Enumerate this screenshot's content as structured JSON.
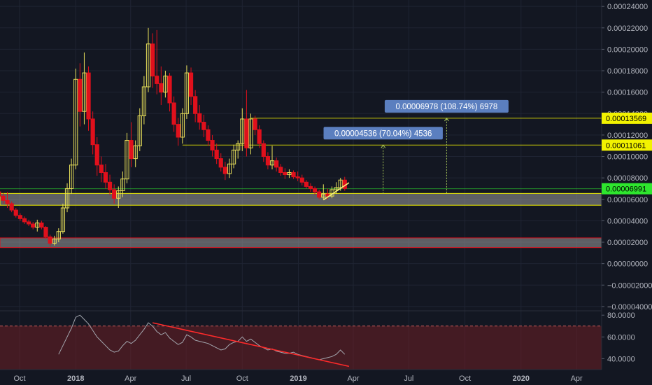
{
  "theme": {
    "background": "#131722",
    "grid": "#1f2433",
    "axis_text": "#b2b5be",
    "candle_up": "#e8e05a",
    "candle_down": "#e0101c",
    "horizontal_line_yellow": "#f2f200",
    "current_price_green": "#2ee62e",
    "zone_fill": "#9a9a9a",
    "measure_label_bg": "#5b7fbf",
    "rsi_line": "#a3a6ae",
    "rsi_band": "#6e1f24",
    "rsi_trendline": "#ff2a2a"
  },
  "chart_data": [
    {
      "type": "candlestick",
      "ylim": [
        -4.4e-05,
        0.000246
      ],
      "price_axis_ticks": [
        "0.00024000",
        "0.00022000",
        "0.00020000",
        "0.00018000",
        "0.00016000",
        "0.00014000",
        "0.00012000",
        "0.00010000",
        "0.00008000",
        "0.00006000",
        "0.00004000",
        "0.00002000",
        "0.00000000",
        "−0.00002000",
        "−0.00004000"
      ],
      "price_axis_tick_values": [
        0.00024,
        0.00022,
        0.0002,
        0.00018,
        0.00016,
        0.00014,
        0.00012,
        0.0001,
        8e-05,
        6e-05,
        4e-05,
        2e-05,
        0,
        -2e-05,
        -4e-05
      ],
      "time_axis_labels": [
        "Oct",
        "2018",
        "Apr",
        "Jul",
        "Oct",
        "2019",
        "Apr",
        "Jul",
        "Oct",
        "2020",
        "Apr"
      ],
      "time_axis_bold": [
        false,
        true,
        false,
        false,
        false,
        true,
        false,
        false,
        false,
        true,
        false
      ],
      "time_axis_dates": [
        "2017-10-01",
        "2018-01-01",
        "2018-04-01",
        "2018-07-01",
        "2018-10-01",
        "2019-01-01",
        "2019-04-01",
        "2019-07-01",
        "2019-10-01",
        "2020-01-01",
        "2020-04-01"
      ],
      "candles": [
        {
          "date": "2017-08-28",
          "open": 6.7e-05,
          "high": 6.9e-05,
          "low": 6.1e-05,
          "close": 6.3e-05
        },
        {
          "date": "2017-09-04",
          "open": 6.3e-05,
          "high": 6.6e-05,
          "low": 5.6e-05,
          "close": 5.9e-05
        },
        {
          "date": "2017-09-11",
          "open": 5.9e-05,
          "high": 6.7e-05,
          "low": 5.2e-05,
          "close": 5.6e-05
        },
        {
          "date": "2017-09-18",
          "open": 5.6e-05,
          "high": 5.8e-05,
          "low": 4.8e-05,
          "close": 5e-05
        },
        {
          "date": "2017-09-25",
          "open": 5e-05,
          "high": 5.2e-05,
          "low": 4.3e-05,
          "close": 4.5e-05
        },
        {
          "date": "2017-10-02",
          "open": 4.5e-05,
          "high": 4.7e-05,
          "low": 4e-05,
          "close": 4.2e-05
        },
        {
          "date": "2017-10-09",
          "open": 4.2e-05,
          "high": 4.4e-05,
          "low": 3.7e-05,
          "close": 3.9e-05
        },
        {
          "date": "2017-10-16",
          "open": 3.9e-05,
          "high": 4.1e-05,
          "low": 3.5e-05,
          "close": 3.7e-05
        },
        {
          "date": "2017-10-23",
          "open": 3.7e-05,
          "high": 3.9e-05,
          "low": 3.2e-05,
          "close": 3.4e-05
        },
        {
          "date": "2017-10-30",
          "open": 3.4e-05,
          "high": 4.1e-05,
          "low": 3e-05,
          "close": 3.8e-05
        },
        {
          "date": "2017-11-06",
          "open": 3.8e-05,
          "high": 4e-05,
          "low": 3.2e-05,
          "close": 3.4e-05
        },
        {
          "date": "2017-11-13",
          "open": 3.4e-05,
          "high": 3.5e-05,
          "low": 2.3e-05,
          "close": 2.5e-05
        },
        {
          "date": "2017-11-20",
          "open": 2.5e-05,
          "high": 2.7e-05,
          "low": 1.6e-05,
          "close": 1.9e-05
        },
        {
          "date": "2017-11-27",
          "open": 1.9e-05,
          "high": 2.6e-05,
          "low": 1.7e-05,
          "close": 2.3e-05
        },
        {
          "date": "2017-12-04",
          "open": 2.3e-05,
          "high": 3.3e-05,
          "low": 2e-05,
          "close": 3e-05
        },
        {
          "date": "2017-12-11",
          "open": 3e-05,
          "high": 5.6e-05,
          "low": 2.8e-05,
          "close": 5.2e-05
        },
        {
          "date": "2017-12-18",
          "open": 5.2e-05,
          "high": 7.5e-05,
          "low": 4.8e-05,
          "close": 7e-05
        },
        {
          "date": "2017-12-25",
          "open": 7e-05,
          "high": 9.8e-05,
          "low": 6.5e-05,
          "close": 9.2e-05
        },
        {
          "date": "2018-01-01",
          "open": 9.2e-05,
          "high": 0.000182,
          "low": 8.8e-05,
          "close": 0.000172
        },
        {
          "date": "2018-01-08",
          "open": 0.000172,
          "high": 0.000187,
          "low": 0.000128,
          "close": 0.000142
        },
        {
          "date": "2018-01-15",
          "open": 0.000142,
          "high": 0.000197,
          "low": 0.00013,
          "close": 0.000178
        },
        {
          "date": "2018-01-22",
          "open": 0.000178,
          "high": 0.000184,
          "low": 0.000124,
          "close": 0.000135
        },
        {
          "date": "2018-01-29",
          "open": 0.000135,
          "high": 0.000142,
          "low": 0.000102,
          "close": 0.000111
        },
        {
          "date": "2018-02-05",
          "open": 0.000111,
          "high": 0.000118,
          "low": 8.2e-05,
          "close": 9.2e-05
        },
        {
          "date": "2018-02-12",
          "open": 9.2e-05,
          "high": 0.0001,
          "low": 7.6e-05,
          "close": 8.5e-05
        },
        {
          "date": "2018-02-19",
          "open": 8.5e-05,
          "high": 9.3e-05,
          "low": 7e-05,
          "close": 7.6e-05
        },
        {
          "date": "2018-02-26",
          "open": 7.6e-05,
          "high": 8.3e-05,
          "low": 6.4e-05,
          "close": 6.9e-05
        },
        {
          "date": "2018-03-05",
          "open": 6.9e-05,
          "high": 7.4e-05,
          "low": 5.6e-05,
          "close": 6.1e-05
        },
        {
          "date": "2018-03-12",
          "open": 6.1e-05,
          "high": 7.2e-05,
          "low": 5.2e-05,
          "close": 6.8e-05
        },
        {
          "date": "2018-03-19",
          "open": 6.8e-05,
          "high": 8.6e-05,
          "low": 6.2e-05,
          "close": 7.9e-05
        },
        {
          "date": "2018-03-26",
          "open": 7.9e-05,
          "high": 0.000122,
          "low": 7.5e-05,
          "close": 0.000115
        },
        {
          "date": "2018-04-02",
          "open": 0.000115,
          "high": 0.000132,
          "low": 9e-05,
          "close": 9.8e-05
        },
        {
          "date": "2018-04-09",
          "open": 9.8e-05,
          "high": 0.000115,
          "low": 9e-05,
          "close": 0.00011
        },
        {
          "date": "2018-04-16",
          "open": 0.00011,
          "high": 0.000145,
          "low": 0.000105,
          "close": 0.000138
        },
        {
          "date": "2018-04-23",
          "open": 0.000138,
          "high": 0.000175,
          "low": 0.00013,
          "close": 0.000165
        },
        {
          "date": "2018-04-30",
          "open": 0.000165,
          "high": 0.00022,
          "low": 0.00016,
          "close": 0.000205
        },
        {
          "date": "2018-05-07",
          "open": 0.000205,
          "high": 0.000215,
          "low": 0.000164,
          "close": 0.000175
        },
        {
          "date": "2018-05-14",
          "open": 0.000175,
          "high": 0.000218,
          "low": 0.000158,
          "close": 0.000168
        },
        {
          "date": "2018-05-21",
          "open": 0.000168,
          "high": 0.000184,
          "low": 0.000148,
          "close": 0.00016
        },
        {
          "date": "2018-05-28",
          "open": 0.00016,
          "high": 0.00018,
          "low": 0.000155,
          "close": 0.000175
        },
        {
          "date": "2018-06-04",
          "open": 0.000175,
          "high": 0.000178,
          "low": 0.000142,
          "close": 0.00015
        },
        {
          "date": "2018-06-11",
          "open": 0.00015,
          "high": 0.000156,
          "low": 0.000123,
          "close": 0.00013
        },
        {
          "date": "2018-06-18",
          "open": 0.00013,
          "high": 0.000136,
          "low": 0.00011,
          "close": 0.000118
        },
        {
          "date": "2018-06-25",
          "open": 0.000118,
          "high": 0.000145,
          "low": 0.000112,
          "close": 0.00014
        },
        {
          "date": "2018-07-02",
          "open": 0.00014,
          "high": 0.000185,
          "low": 0.000135,
          "close": 0.000178
        },
        {
          "date": "2018-07-09",
          "open": 0.000178,
          "high": 0.000183,
          "low": 0.000148,
          "close": 0.000156
        },
        {
          "date": "2018-07-16",
          "open": 0.000156,
          "high": 0.000162,
          "low": 0.000132,
          "close": 0.00014
        },
        {
          "date": "2018-07-23",
          "open": 0.00014,
          "high": 0.000148,
          "low": 0.000125,
          "close": 0.000132
        },
        {
          "date": "2018-07-30",
          "open": 0.000132,
          "high": 0.000139,
          "low": 0.000118,
          "close": 0.000125
        },
        {
          "date": "2018-08-06",
          "open": 0.000125,
          "high": 0.000129,
          "low": 0.00011,
          "close": 0.000115
        },
        {
          "date": "2018-08-13",
          "open": 0.000115,
          "high": 0.00012,
          "low": 0.0001,
          "close": 0.000106
        },
        {
          "date": "2018-08-20",
          "open": 0.000106,
          "high": 0.000112,
          "low": 9.3e-05,
          "close": 9.8e-05
        },
        {
          "date": "2018-08-27",
          "open": 9.8e-05,
          "high": 0.000103,
          "low": 8.6e-05,
          "close": 9e-05
        },
        {
          "date": "2018-09-03",
          "open": 9e-05,
          "high": 9.5e-05,
          "low": 7.8e-05,
          "close": 8.4e-05
        },
        {
          "date": "2018-09-10",
          "open": 8.4e-05,
          "high": 9.8e-05,
          "low": 8e-05,
          "close": 9.3e-05
        },
        {
          "date": "2018-09-17",
          "open": 9.3e-05,
          "high": 0.000111,
          "low": 8.9e-05,
          "close": 0.000106
        },
        {
          "date": "2018-09-24",
          "open": 0.000106,
          "high": 0.000115,
          "low": 9.8e-05,
          "close": 0.000112
        },
        {
          "date": "2018-10-01",
          "open": 0.000112,
          "high": 0.000145,
          "low": 0.000105,
          "close": 0.000135
        },
        {
          "date": "2018-10-08",
          "open": 0.000135,
          "high": 0.000162,
          "low": 0.0001,
          "close": 0.000108
        },
        {
          "date": "2018-10-15",
          "open": 0.000108,
          "high": 0.00014,
          "low": 0.000102,
          "close": 0.000135
        },
        {
          "date": "2018-10-22",
          "open": 0.000135,
          "high": 0.000138,
          "low": 0.00012,
          "close": 0.000125
        },
        {
          "date": "2018-10-29",
          "open": 0.000125,
          "high": 0.000129,
          "low": 0.000108,
          "close": 0.000112
        },
        {
          "date": "2018-11-05",
          "open": 0.000112,
          "high": 0.000115,
          "low": 9.5e-05,
          "close": 0.0001
        },
        {
          "date": "2018-11-12",
          "open": 0.0001,
          "high": 0.000104,
          "low": 8.8e-05,
          "close": 9.2e-05
        },
        {
          "date": "2018-11-19",
          "open": 9.2e-05,
          "high": 0.00011,
          "low": 8.8e-05,
          "close": 9.6e-05
        },
        {
          "date": "2018-11-26",
          "open": 9.6e-05,
          "high": 9.9e-05,
          "low": 8.6e-05,
          "close": 9e-05
        },
        {
          "date": "2018-12-03",
          "open": 9e-05,
          "high": 9.3e-05,
          "low": 8.2e-05,
          "close": 8.5e-05
        },
        {
          "date": "2018-12-10",
          "open": 8.5e-05,
          "high": 8.9e-05,
          "low": 7.9e-05,
          "close": 8.3e-05
        },
        {
          "date": "2018-12-17",
          "open": 8.3e-05,
          "high": 8.8e-05,
          "low": 8e-05,
          "close": 8.5e-05
        },
        {
          "date": "2018-12-24",
          "open": 8.5e-05,
          "high": 8.7e-05,
          "low": 7.9e-05,
          "close": 8.1e-05
        },
        {
          "date": "2018-12-31",
          "open": 8.1e-05,
          "high": 8.6e-05,
          "low": 7.7e-05,
          "close": 8e-05
        },
        {
          "date": "2019-01-07",
          "open": 8e-05,
          "high": 8.3e-05,
          "low": 7.3e-05,
          "close": 7.6e-05
        },
        {
          "date": "2019-01-14",
          "open": 7.6e-05,
          "high": 7.8e-05,
          "low": 7e-05,
          "close": 7.2e-05
        },
        {
          "date": "2019-01-21",
          "open": 7.2e-05,
          "high": 7.5e-05,
          "low": 6.7e-05,
          "close": 7e-05
        },
        {
          "date": "2019-01-28",
          "open": 7e-05,
          "high": 7.2e-05,
          "low": 6.4e-05,
          "close": 6.7e-05
        },
        {
          "date": "2019-02-04",
          "open": 6.7e-05,
          "high": 6.9e-05,
          "low": 6e-05,
          "close": 6.2e-05
        },
        {
          "date": "2019-02-11",
          "open": 6.2e-05,
          "high": 7.4e-05,
          "low": 6e-05,
          "close": 6.5e-05
        },
        {
          "date": "2019-02-18",
          "open": 6.5e-05,
          "high": 7e-05,
          "low": 6e-05,
          "close": 6.3e-05
        },
        {
          "date": "2019-02-25",
          "open": 6.3e-05,
          "high": 7.2e-05,
          "low": 6.1e-05,
          "close": 6.9e-05
        },
        {
          "date": "2019-03-04",
          "open": 6.9e-05,
          "high": 7.6e-05,
          "low": 6.5e-05,
          "close": 7.1e-05
        },
        {
          "date": "2019-03-11",
          "open": 7.1e-05,
          "high": 8e-05,
          "low": 6.8e-05,
          "close": 7.8e-05
        },
        {
          "date": "2019-03-18",
          "open": 7.8e-05,
          "high": 8.1e-05,
          "low": 6.8e-05,
          "close": 7e-05
        }
      ],
      "horizontal_lines": [
        {
          "price": 0.00013569,
          "label": "0.00013569",
          "color": "#f2f200"
        },
        {
          "price": 0.00011061,
          "label": "0.00011061",
          "color": "#f2f200"
        },
        {
          "price": 6.991e-05,
          "label": "0.00006991",
          "color": "#2ee62e"
        }
      ],
      "zones": [
        {
          "from": 5.45e-05,
          "to": 6.55e-05,
          "border": "#f2f200"
        },
        {
          "from": 1.5e-05,
          "to": 2.4e-05,
          "border": "#e0101c"
        }
      ],
      "measurements": [
        {
          "label": "0.00004536 (70.04%) 4536",
          "date": "2019-05-20",
          "from": 6.525e-05,
          "to": 0.00011061
        },
        {
          "label": "0.00006978 (108.74%) 6978",
          "date": "2019-09-01",
          "from": 6.591e-05,
          "to": 0.00013569
        }
      ],
      "trendline": {
        "start": {
          "date": "2019-02-11",
          "price": 5.95e-05
        },
        "end": {
          "date": "2019-03-25",
          "price": 7.55e-05
        }
      }
    },
    {
      "type": "line",
      "name": "RSI",
      "ylim": [
        30,
        84
      ],
      "y_ticks": [
        "80.0000",
        "60.0000",
        "40.0000"
      ],
      "y_tick_values": [
        80,
        60,
        40
      ],
      "band": [
        30,
        70
      ],
      "x": [
        "2017-12-04",
        "2017-12-11",
        "2017-12-18",
        "2017-12-25",
        "2018-01-01",
        "2018-01-08",
        "2018-01-15",
        "2018-01-22",
        "2018-01-29",
        "2018-02-05",
        "2018-02-12",
        "2018-02-19",
        "2018-02-26",
        "2018-03-05",
        "2018-03-12",
        "2018-03-19",
        "2018-03-26",
        "2018-04-02",
        "2018-04-09",
        "2018-04-16",
        "2018-04-23",
        "2018-04-30",
        "2018-05-07",
        "2018-05-14",
        "2018-05-21",
        "2018-05-28",
        "2018-06-04",
        "2018-06-11",
        "2018-06-18",
        "2018-06-25",
        "2018-07-02",
        "2018-07-09",
        "2018-07-16",
        "2018-07-23",
        "2018-07-30",
        "2018-08-06",
        "2018-08-13",
        "2018-08-20",
        "2018-08-27",
        "2018-09-03",
        "2018-09-10",
        "2018-09-17",
        "2018-09-24",
        "2018-10-01",
        "2018-10-08",
        "2018-10-15",
        "2018-10-22",
        "2018-10-29",
        "2018-11-05",
        "2018-11-12",
        "2018-11-19",
        "2018-11-26",
        "2018-12-03",
        "2018-12-10",
        "2018-12-17",
        "2018-12-24",
        "2018-12-31",
        "2019-01-07",
        "2019-01-14",
        "2019-01-21",
        "2019-01-28",
        "2019-02-04",
        "2019-02-11",
        "2019-02-18",
        "2019-02-25",
        "2019-03-04",
        "2019-03-11",
        "2019-03-18"
      ],
      "values": [
        44,
        52,
        60,
        68,
        78,
        80,
        76,
        72,
        66,
        60,
        56,
        52,
        48,
        46,
        47,
        52,
        56,
        54,
        57,
        62,
        67,
        73,
        70,
        65,
        62,
        64,
        59,
        56,
        53,
        55,
        62,
        60,
        57,
        56,
        55,
        54,
        52,
        50,
        48,
        49,
        53,
        55,
        56,
        60,
        56,
        58,
        55,
        52,
        50,
        48,
        49,
        47,
        46,
        45,
        45,
        46,
        44,
        43,
        42,
        41,
        40,
        39,
        40,
        41,
        42,
        44,
        48,
        44
      ],
      "trendline": {
        "start": {
          "date": "2018-05-07",
          "value": 73
        },
        "end": {
          "date": "2019-03-25",
          "value": 33
        }
      }
    }
  ]
}
